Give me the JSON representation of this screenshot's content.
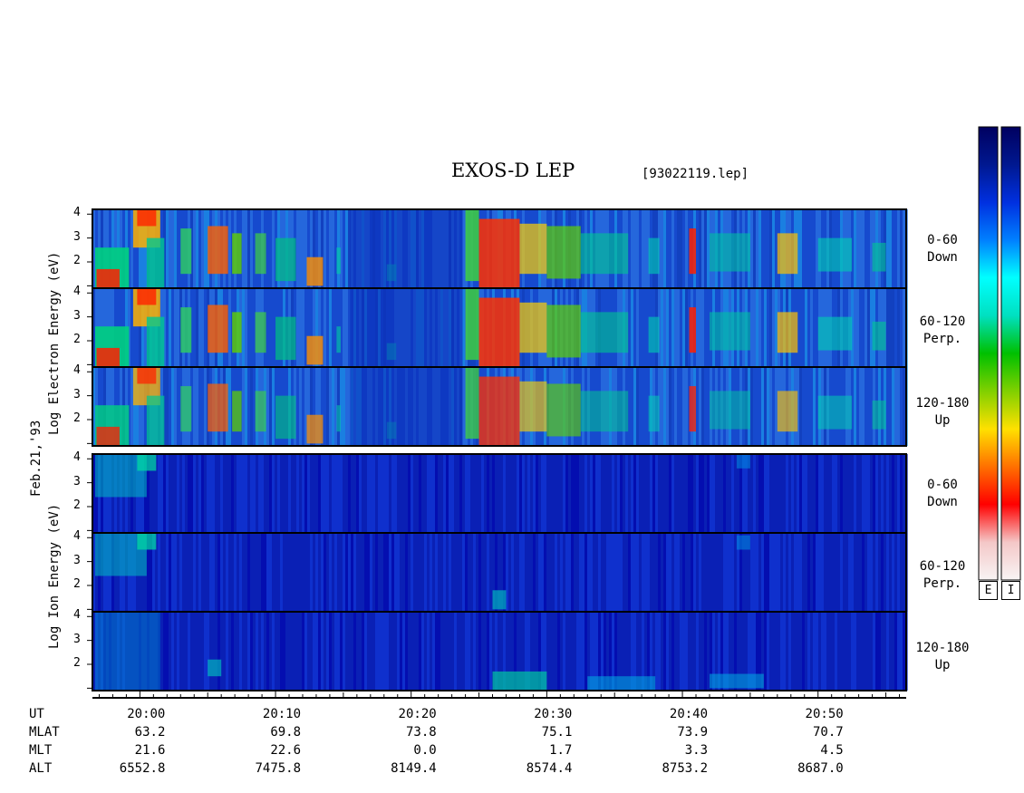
{
  "chart_data": {
    "type": "heatmap",
    "title": "EXOS-D LEP",
    "file_label": "[93022119.lep]",
    "date_label": "Feb.21,'93",
    "panel_groups": [
      {
        "name": "electron",
        "ylabel_words": [
          "Log",
          "Electron",
          "Energy",
          "(eV)"
        ],
        "panels": [
          {
            "label_top": "0-60",
            "label_bottom": "Down"
          },
          {
            "label_top": "60-120",
            "label_bottom": "Perp."
          },
          {
            "label_top": "120-180",
            "label_bottom": "Up"
          }
        ]
      },
      {
        "name": "ion",
        "ylabel_words": [
          "Log",
          "Ion",
          "Energy",
          "(eV)"
        ],
        "panels": [
          {
            "label_top": "0-60",
            "label_bottom": "Down"
          },
          {
            "label_top": "60-120",
            "label_bottom": "Perp."
          },
          {
            "label_top": "120-180",
            "label_bottom": "Up"
          }
        ]
      }
    ],
    "y_ticks": [
      "2",
      "3",
      "4"
    ],
    "ylim": [
      0.9,
      4.2
    ],
    "x_ticks": [
      "20:00",
      "20:10",
      "20:20",
      "20:30",
      "20:40",
      "20:50"
    ],
    "xlim_minutes": [
      -3.5,
      56.5
    ],
    "ephemeris": {
      "row_labels": [
        "UT",
        "MLAT",
        "MLT",
        "ALT"
      ],
      "MLAT": [
        "63.2",
        "69.8",
        "73.8",
        "75.1",
        "73.9",
        "70.7"
      ],
      "MLT": [
        "21.6",
        "22.6",
        "0.0",
        "1.7",
        "3.3",
        "4.5"
      ],
      "ALT": [
        "6552.8",
        "7475.8",
        "8149.4",
        "8574.4",
        "8753.2",
        "8687.0"
      ]
    },
    "colorbar_labels": [
      "E",
      "I"
    ],
    "colormap": [
      "#f8f4f4",
      "#f4c8c8",
      "#ff0000",
      "#ff7000",
      "#ffe000",
      "#80d000",
      "#00c000",
      "#00e0c0",
      "#00ffff",
      "#0080ff",
      "#0030e0",
      "#001890",
      "#000060"
    ]
  }
}
